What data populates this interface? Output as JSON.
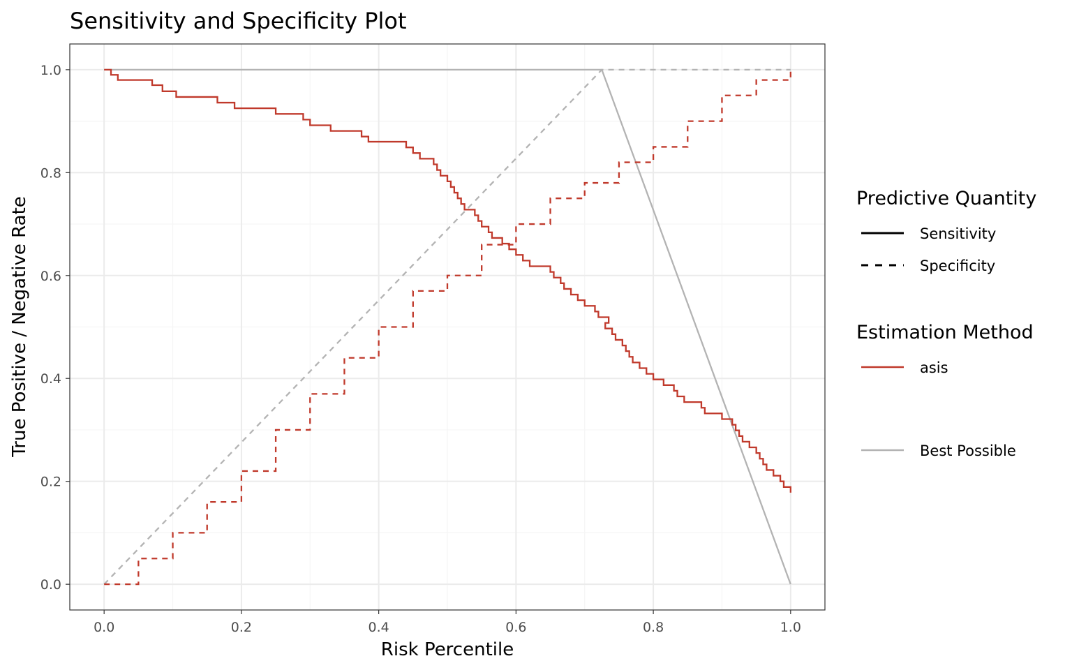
{
  "chart_data": {
    "type": "line",
    "title": "Sensitivity and Specificity Plot",
    "xlabel": "Risk Percentile",
    "ylabel": "True Positive / Negative Rate",
    "xlim": [
      -0.05,
      1.05
    ],
    "ylim": [
      -0.05,
      1.05
    ],
    "xticks": [
      0.0,
      0.2,
      0.4,
      0.6,
      0.8,
      1.0
    ],
    "xtick_labels": [
      "0.0",
      "0.2",
      "0.4",
      "0.6",
      "0.8",
      "1.0"
    ],
    "yticks": [
      0.0,
      0.2,
      0.4,
      0.6,
      0.8,
      1.0
    ],
    "ytick_labels": [
      "0.0",
      "0.2",
      "0.4",
      "0.6",
      "0.8",
      "1.0"
    ],
    "grid": true,
    "legend_position": "right",
    "legend": {
      "groups": [
        {
          "title": "Predictive Quantity",
          "entries": [
            {
              "label": "Sensitivity",
              "linetype": "solid",
              "color": "#000000"
            },
            {
              "label": "Specificity",
              "linetype": "dashed",
              "color": "#000000"
            }
          ]
        },
        {
          "title": "Estimation Method",
          "entries": [
            {
              "label": "asis",
              "linetype": "solid",
              "color": "#c0392b"
            },
            {
              "label": "Best Possible",
              "linetype": "solid",
              "color": "#b3b3b3"
            }
          ]
        }
      ]
    },
    "series": [
      {
        "method": "asis",
        "quantity": "Sensitivity",
        "color": "#c0392b",
        "dash": false,
        "step": true,
        "x": [
          0.0,
          0.01,
          0.02,
          0.07,
          0.085,
          0.105,
          0.165,
          0.19,
          0.25,
          0.29,
          0.3,
          0.33,
          0.375,
          0.385,
          0.44,
          0.45,
          0.46,
          0.48,
          0.485,
          0.49,
          0.5,
          0.505,
          0.51,
          0.515,
          0.52,
          0.525,
          0.54,
          0.545,
          0.55,
          0.56,
          0.565,
          0.58,
          0.59,
          0.6,
          0.61,
          0.62,
          0.65,
          0.655,
          0.665,
          0.67,
          0.68,
          0.69,
          0.7,
          0.715,
          0.72,
          0.735,
          0.73,
          0.74,
          0.745,
          0.755,
          0.76,
          0.765,
          0.77,
          0.78,
          0.79,
          0.8,
          0.815,
          0.83,
          0.835,
          0.845,
          0.87,
          0.875,
          0.9,
          0.915,
          0.92,
          0.925,
          0.93,
          0.94,
          0.95,
          0.955,
          0.96,
          0.965,
          0.975,
          0.985,
          0.99,
          1.0
        ],
        "y": [
          1.0,
          0.99,
          0.98,
          0.97,
          0.958,
          0.947,
          0.936,
          0.925,
          0.914,
          0.903,
          0.892,
          0.881,
          0.87,
          0.86,
          0.849,
          0.838,
          0.827,
          0.816,
          0.805,
          0.794,
          0.783,
          0.772,
          0.761,
          0.75,
          0.739,
          0.728,
          0.717,
          0.706,
          0.695,
          0.684,
          0.673,
          0.662,
          0.651,
          0.64,
          0.629,
          0.618,
          0.607,
          0.596,
          0.585,
          0.574,
          0.563,
          0.552,
          0.541,
          0.53,
          0.519,
          0.508,
          0.497,
          0.486,
          0.475,
          0.464,
          0.453,
          0.442,
          0.431,
          0.42,
          0.409,
          0.398,
          0.387,
          0.376,
          0.365,
          0.354,
          0.343,
          0.332,
          0.321,
          0.31,
          0.299,
          0.288,
          0.277,
          0.266,
          0.255,
          0.244,
          0.233,
          0.222,
          0.211,
          0.2,
          0.189,
          0.178
        ]
      },
      {
        "method": "asis",
        "quantity": "Specificity",
        "color": "#c0392b",
        "dash": true,
        "step": true,
        "x": [
          0.0,
          0.05,
          0.1,
          0.15,
          0.2,
          0.25,
          0.3,
          0.35,
          0.4,
          0.45,
          0.5,
          0.55,
          0.6,
          0.65,
          0.7,
          0.75,
          0.8,
          0.85,
          0.9,
          0.95,
          1.0
        ],
        "y": [
          0.0,
          0.05,
          0.1,
          0.16,
          0.22,
          0.3,
          0.37,
          0.44,
          0.5,
          0.57,
          0.6,
          0.66,
          0.7,
          0.75,
          0.78,
          0.82,
          0.85,
          0.9,
          0.95,
          0.98,
          1.0
        ]
      },
      {
        "method": "Best Possible",
        "quantity": "Sensitivity",
        "color": "#b3b3b3",
        "dash": false,
        "step": false,
        "x": [
          0.0,
          0.725,
          1.0
        ],
        "y": [
          1.0,
          1.0,
          0.0
        ]
      },
      {
        "method": "Best Possible",
        "quantity": "Specificity",
        "color": "#b3b3b3",
        "dash": true,
        "step": false,
        "x": [
          0.0,
          0.725,
          1.0
        ],
        "y": [
          0.0,
          1.0,
          1.0
        ]
      }
    ]
  }
}
